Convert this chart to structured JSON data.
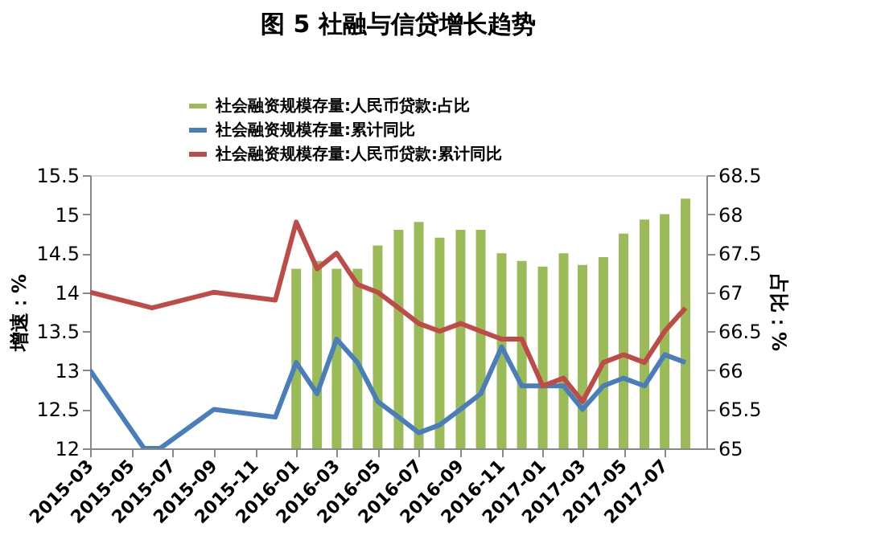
{
  "chart_data": {
    "type": "line",
    "title": "图 5  社融与信贷增长趋势",
    "ylabel": "增速：%",
    "y2label": "占比：%",
    "xlim": [
      "2015-03",
      "2017-09"
    ],
    "xticks": [
      "2015-03",
      "2015-05",
      "2015-07",
      "2015-09",
      "2015-11",
      "2016-01",
      "2016-03",
      "2016-05",
      "2016-07",
      "2016-09",
      "2016-11",
      "2017-01",
      "2017-03",
      "2017-05",
      "2017-07"
    ],
    "ylim": [
      12,
      15.5
    ],
    "yticks": [
      12,
      12.5,
      13,
      13.5,
      14,
      14.5,
      15,
      15.5
    ],
    "y2lim": [
      65,
      68.5
    ],
    "y2ticks": [
      65,
      65.5,
      66,
      66.5,
      67,
      67.5,
      68,
      68.5
    ],
    "legend": "top",
    "grid": false,
    "series": [
      {
        "name": "社会融资规模存量:人民币贷款:占比",
        "type": "bar",
        "axis": "y2",
        "color": "#9bbb59",
        "x": [
          "2016-01",
          "2016-02",
          "2016-03",
          "2016-04",
          "2016-05",
          "2016-06",
          "2016-07",
          "2016-08",
          "2016-09",
          "2016-10",
          "2016-11",
          "2016-12",
          "2017-01",
          "2017-02",
          "2017-03",
          "2017-04",
          "2017-05",
          "2017-06",
          "2017-07",
          "2017-08"
        ],
        "values": [
          67.3,
          67.4,
          67.3,
          67.3,
          67.6,
          67.8,
          67.9,
          67.7,
          67.8,
          67.8,
          67.5,
          67.4,
          67.33,
          67.5,
          67.35,
          67.45,
          67.75,
          67.93,
          68.0,
          68.2
        ]
      },
      {
        "name": "社会融资规模存量:累计同比",
        "color": "#4a7ebb",
        "x": [
          "2015-03",
          "2015-05-20",
          "2015-06-13",
          "2015-09",
          "2015-12",
          "2016-01",
          "2016-02",
          "2016-03",
          "2016-04",
          "2016-05",
          "2016-06",
          "2016-07",
          "2016-08",
          "2016-09",
          "2016-10",
          "2016-11",
          "2016-12",
          "2017-01",
          "2017-02",
          "2017-03",
          "2017-04",
          "2017-05",
          "2017-06",
          "2017-07",
          "2017-08"
        ],
        "values": [
          13.0,
          12,
          12,
          12.5,
          12.4,
          13.1,
          12.7,
          13.4,
          13.1,
          12.6,
          12.4,
          12.2,
          12.3,
          12.5,
          12.7,
          13.3,
          12.8,
          12.8,
          12.8,
          12.5,
          12.8,
          12.9,
          12.8,
          13.2,
          13.1
        ]
      },
      {
        "name": "社会融资规模存量:人民币贷款:累计同比",
        "color": "#be4b48",
        "x": [
          "2015-03",
          "2015-06",
          "2015-09",
          "2015-12",
          "2016-01",
          "2016-02",
          "2016-03",
          "2016-04",
          "2016-05",
          "2016-06",
          "2016-07",
          "2016-08",
          "2016-09",
          "2016-10",
          "2016-11",
          "2016-12",
          "2017-01",
          "2017-02",
          "2017-03",
          "2017-04",
          "2017-05",
          "2017-06",
          "2017-07",
          "2017-08"
        ],
        "values": [
          14.0,
          13.8,
          14.0,
          13.9,
          14.9,
          14.3,
          14.5,
          14.1,
          14.0,
          13.8,
          13.6,
          13.5,
          13.6,
          13.5,
          13.4,
          13.4,
          12.8,
          12.9,
          12.6,
          13.1,
          13.2,
          13.1,
          13.5,
          13.8
        ]
      }
    ]
  }
}
